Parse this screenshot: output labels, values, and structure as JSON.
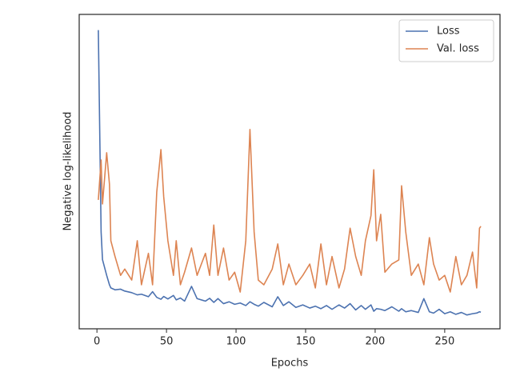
{
  "chart_data": {
    "type": "line",
    "xlabel": "Epochs",
    "ylabel": "Negative log-likelihood",
    "x": [
      1,
      3,
      4,
      7,
      9,
      10,
      13,
      17,
      20,
      25,
      29,
      32,
      37,
      40,
      43,
      46,
      48,
      51,
      55,
      57,
      60,
      63,
      68,
      72,
      78,
      81,
      84,
      87,
      91,
      95,
      99,
      103,
      107,
      110,
      113,
      116,
      120,
      126,
      130,
      134,
      138,
      143,
      148,
      153,
      157,
      161,
      165,
      169,
      174,
      178,
      182,
      186,
      190,
      193,
      197,
      199,
      201,
      204,
      207,
      212,
      217,
      219,
      222,
      226,
      231,
      235,
      239,
      242,
      246,
      250,
      254,
      258,
      262,
      266,
      270,
      273,
      275,
      276
    ],
    "series": [
      {
        "name": "Loss",
        "color": "#4c72b0",
        "values": [
          95,
          30.8,
          22,
          17,
          14,
          13,
          12.4,
          12.6,
          12,
          11.5,
          10.8,
          11,
          10.2,
          11.8,
          10,
          9.4,
          10.3,
          9.5,
          10.6,
          9.2,
          9.8,
          8.8,
          13.5,
          9.6,
          8.8,
          9.7,
          8.4,
          9.6,
          8,
          8.6,
          7.8,
          8.2,
          7.4,
          8.6,
          7.8,
          7.2,
          8.4,
          7.0,
          10.2,
          7.4,
          8.6,
          6.8,
          7.6,
          6.6,
          7.2,
          6.4,
          7.4,
          6.2,
          7.6,
          6.6,
          8.0,
          6.0,
          7.4,
          6.2,
          7.6,
          5.6,
          6.4,
          6.2,
          5.8,
          7.0,
          5.6,
          6.4,
          5.4,
          5.8,
          5.2,
          9.6,
          5.4,
          5.0,
          6.2,
          4.8,
          5.4,
          4.6,
          5.2,
          4.4,
          4.8,
          5.0,
          5.4,
          5.3
        ]
      },
      {
        "name": "Val. loss",
        "color": "#dd8452",
        "values": [
          41,
          53.7,
          39.7,
          56,
          46,
          28,
          23,
          17,
          19,
          15.5,
          28,
          14,
          24,
          14,
          43.5,
          57,
          42,
          28,
          17,
          28,
          14,
          18,
          25.7,
          17,
          24,
          17,
          33,
          17,
          25.7,
          15.5,
          18,
          11.7,
          28,
          63.4,
          30.8,
          15.5,
          14,
          19,
          27,
          14,
          20.6,
          14,
          17,
          20.6,
          13,
          27,
          14,
          23,
          13,
          19,
          32,
          23,
          17,
          28,
          36,
          50.6,
          28,
          36.4,
          18,
          20.6,
          21.9,
          45.5,
          30.8,
          17,
          20.6,
          14,
          29,
          20.6,
          15.5,
          17,
          11.7,
          23,
          14,
          17,
          24.4,
          13,
          32,
          32.6
        ]
      }
    ],
    "xlim": [
      -12.75,
      289.75
    ],
    "xticks": [
      0,
      50,
      100,
      150,
      200,
      250
    ],
    "ylim": [
      0,
      100
    ],
    "grid": false,
    "legend": "upper right"
  }
}
